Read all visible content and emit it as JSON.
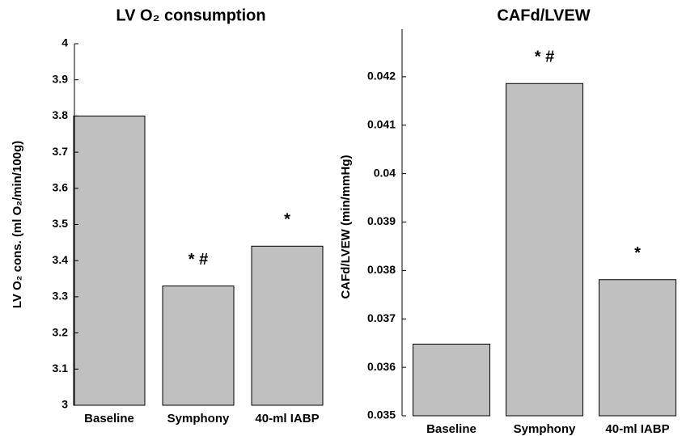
{
  "chart_data": [
    {
      "type": "bar",
      "title": "LV O₂ consumption",
      "y_label": "LV O₂ cons. (ml O₂/min/100g)",
      "categories": [
        "Baseline",
        "Symphony",
        "40-ml IABP"
      ],
      "values": [
        3.8,
        3.33,
        3.44
      ],
      "markers": [
        null,
        "* #",
        "*"
      ],
      "color": "#c0c0c0",
      "ylim": [
        3,
        4
      ],
      "yticks": [
        3,
        3.1,
        3.2,
        3.3,
        3.4,
        3.5,
        3.6,
        3.7,
        3.8,
        3.9,
        4
      ]
    },
    {
      "type": "bar",
      "title": "CAFd/LVEW",
      "y_label": "CAFd/LVEW (min/mmHg)",
      "categories": [
        "Baseline",
        "Symphony",
        "40-ml IABP"
      ],
      "values": [
        0.03648,
        0.04186,
        0.03781
      ],
      "markers": [
        null,
        "* #",
        "*"
      ],
      "color": "#c0c0c0",
      "ylim": [
        0.035,
        0.0428
      ],
      "yticks": [
        0.035,
        0.036,
        0.037,
        0.038,
        0.039,
        0.04,
        0.041,
        0.042
      ]
    }
  ]
}
